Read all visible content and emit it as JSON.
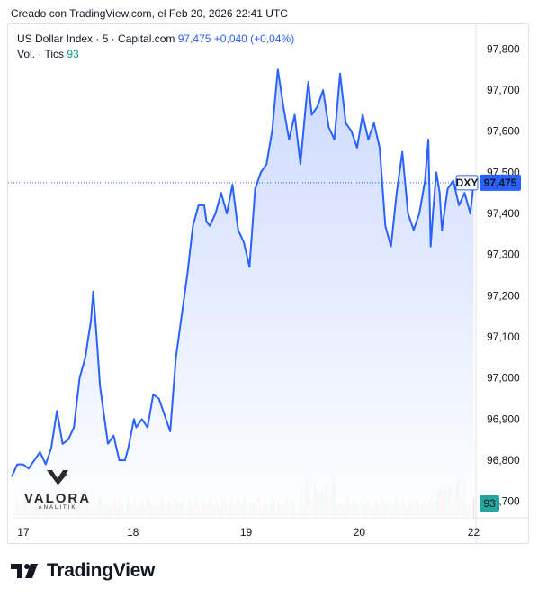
{
  "caption": "Creado con TradingView.com, el Feb 20, 2026 22:41 UTC",
  "legend": {
    "series_title": "US Dollar Index · 5 · Capital.com",
    "last": "97,475",
    "change": "+0,040 (+0,04%)",
    "volume_label": "Vol. · Tics",
    "volume_value": "93"
  },
  "price_label": {
    "symbol": "DXY",
    "value": "97,475"
  },
  "volume_badge": "93",
  "watermark": {
    "name": "VALORA",
    "sub": "ANALITIK"
  },
  "footer": {
    "brand": "TradingView",
    "logo": "tradingview-logo-icon"
  },
  "colors": {
    "line": "#2962ff",
    "area_top": "#c7d6ff",
    "area_bottom": "#ffffff",
    "volume_up": "#4fae9e",
    "volume_down": "#f08a84",
    "price_label_bg": "#2962ff",
    "volume_badge_bg": "#26a69a"
  },
  "chart_data": {
    "type": "line",
    "title": "US Dollar Index · 5 · Capital.com",
    "yticks": [
      "96,700",
      "96,800",
      "96,900",
      "97,000",
      "97,100",
      "97,200",
      "97,300",
      "97,400",
      "97,500",
      "97,600",
      "97,700",
      "97,800"
    ],
    "ylim": [
      96.66,
      97.86
    ],
    "xticks": [
      "17",
      "18",
      "19",
      "20",
      "22"
    ],
    "xlim": [
      0,
      4.1
    ],
    "last_price": 97.475,
    "series": [
      {
        "values_x": [
          0,
          0.05,
          0.1,
          0.15,
          0.2,
          0.25,
          0.3,
          0.35,
          0.4,
          0.45,
          0.5,
          0.55,
          0.6,
          0.65,
          0.7,
          0.72,
          0.75,
          0.78,
          0.8,
          0.85,
          0.9,
          0.95,
          1.0,
          1.03,
          1.08,
          1.1,
          1.15,
          1.2,
          1.25,
          1.3,
          1.35,
          1.4,
          1.45,
          1.5,
          1.55,
          1.6,
          1.65,
          1.7,
          1.72,
          1.75,
          1.8,
          1.85,
          1.9,
          1.95,
          2.0,
          2.05,
          2.1,
          2.15,
          2.2,
          2.25,
          2.3,
          2.35,
          2.4,
          2.45,
          2.5,
          2.55,
          2.6,
          2.62,
          2.65,
          2.7,
          2.75,
          2.8,
          2.85,
          2.9,
          2.95,
          3.0,
          3.05,
          3.1,
          3.15,
          3.2,
          3.25,
          3.3,
          3.35,
          3.4,
          3.45,
          3.5,
          3.55,
          3.6,
          3.65,
          3.68,
          3.7,
          3.72,
          3.75,
          3.78,
          3.8,
          3.85,
          3.9,
          3.95,
          4.0,
          4.05,
          4.08
        ],
        "values_y": [
          96.76,
          96.79,
          96.79,
          96.78,
          96.8,
          96.82,
          96.79,
          96.83,
          96.92,
          96.84,
          96.85,
          96.88,
          97.0,
          97.05,
          97.14,
          97.21,
          97.1,
          96.98,
          96.94,
          96.84,
          96.86,
          96.8,
          96.8,
          96.83,
          96.9,
          96.88,
          96.9,
          96.88,
          96.96,
          96.95,
          96.91,
          96.87,
          97.05,
          97.15,
          97.25,
          97.37,
          97.42,
          97.42,
          97.38,
          97.37,
          97.4,
          97.45,
          97.4,
          97.47,
          97.36,
          97.33,
          97.27,
          97.46,
          97.5,
          97.52,
          97.6,
          97.75,
          97.66,
          97.58,
          97.64,
          97.52,
          97.67,
          97.72,
          97.64,
          97.66,
          97.7,
          97.61,
          97.58,
          97.74,
          97.62,
          97.6,
          97.56,
          97.64,
          97.58,
          97.62,
          97.56,
          97.37,
          97.32,
          97.45,
          97.55,
          97.4,
          97.36,
          97.4,
          97.48,
          97.58,
          97.32,
          97.4,
          97.5,
          97.45,
          97.36,
          97.46,
          97.48,
          97.42,
          97.45,
          97.4,
          97.475
        ]
      }
    ]
  }
}
